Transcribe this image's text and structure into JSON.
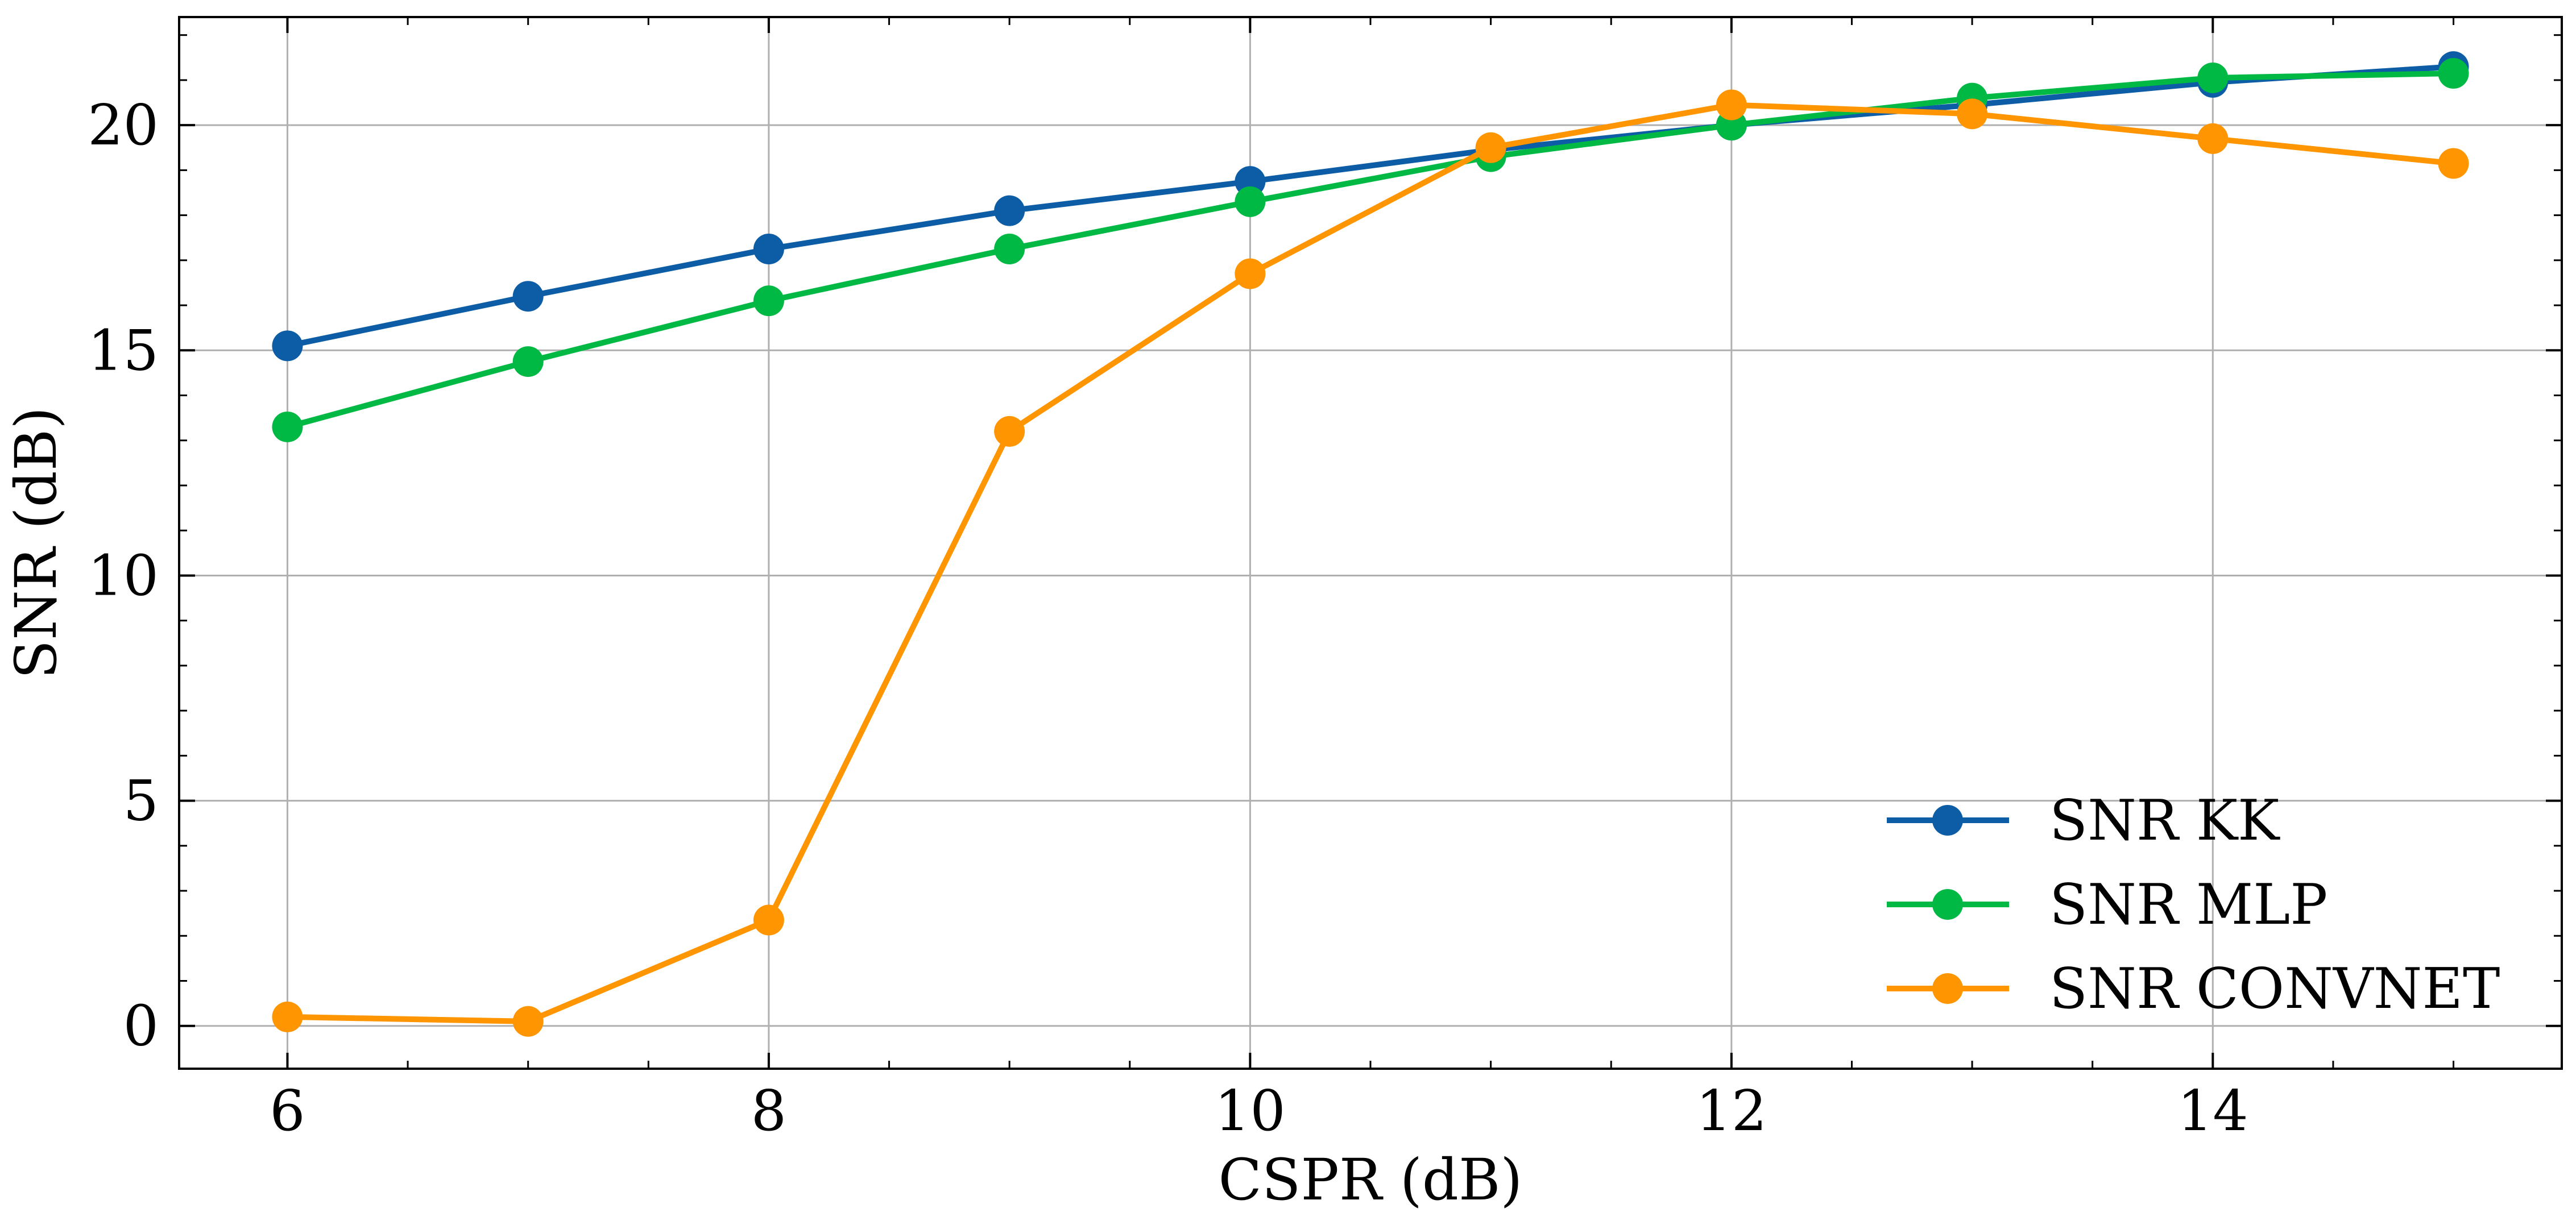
{
  "chart_data": {
    "type": "line",
    "title": "",
    "xlabel": "CSPR (dB)",
    "ylabel": "SNR (dB)",
    "x": [
      6,
      7,
      8,
      9,
      10,
      11,
      12,
      13,
      14,
      15
    ],
    "xlim": [
      5.55,
      15.45
    ],
    "ylim": [
      -0.95,
      22.4
    ],
    "xticks": [
      6,
      8,
      10,
      12,
      14
    ],
    "yticks": [
      0,
      5,
      10,
      15,
      20
    ],
    "grid": true,
    "legend_position": "bottom-right",
    "series": [
      {
        "name": "SNR KK",
        "color": "#0C5DA5",
        "values": [
          15.1,
          16.2,
          17.25,
          18.1,
          18.75,
          19.45,
          20.0,
          20.45,
          20.95,
          21.3
        ]
      },
      {
        "name": "SNR MLP",
        "color": "#00B945",
        "values": [
          13.3,
          14.75,
          16.1,
          17.25,
          18.3,
          19.3,
          20.0,
          20.6,
          21.05,
          21.15
        ]
      },
      {
        "name": "SNR CONVNET",
        "color": "#FF9500",
        "values": [
          0.2,
          0.1,
          2.35,
          13.2,
          16.7,
          19.5,
          20.45,
          20.25,
          19.7,
          19.15
        ]
      }
    ]
  }
}
